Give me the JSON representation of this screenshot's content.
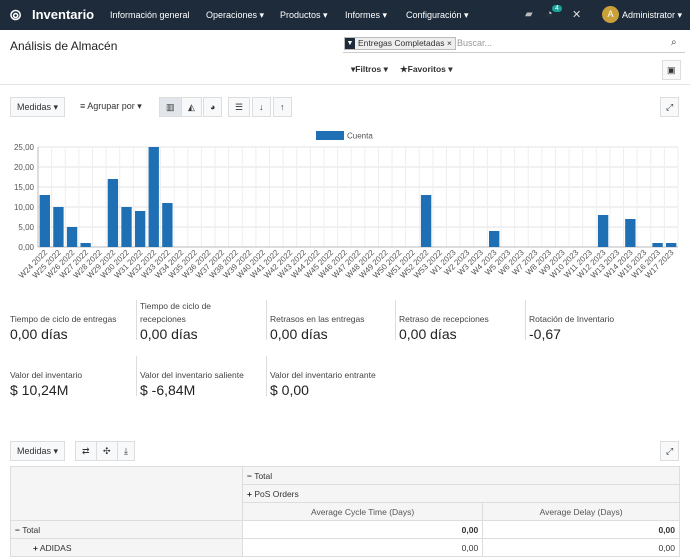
{
  "navbar": {
    "app": "Inventario",
    "menus": [
      "Información general",
      "Operaciones",
      "Productos",
      "Informes",
      "Configuración"
    ],
    "badge": "4",
    "user_initial": "A",
    "user": "Administrator"
  },
  "control_panel": {
    "title": "Análisis de Almacén",
    "facet": "Entregas Completadas",
    "search_placeholder": "Buscar...",
    "filters": "Filtros",
    "favorites": "Favoritos"
  },
  "graph_toolbar": {
    "measures": "Medidas",
    "group_by": "Agrupar por"
  },
  "chart_data": {
    "type": "bar",
    "categories": [
      "W24 2022",
      "W25 2022",
      "W26 2022",
      "W27 2022",
      "W28 2022",
      "W29 2022",
      "W30 2022",
      "W31 2022",
      "W32 2022",
      "W33 2022",
      "W34 2022",
      "W35 2022",
      "W36 2022",
      "W37 2022",
      "W38 2022",
      "W39 2022",
      "W40 2022",
      "W41 2022",
      "W42 2022",
      "W43 2022",
      "W44 2022",
      "W45 2022",
      "W46 2022",
      "W47 2022",
      "W48 2022",
      "W49 2022",
      "W50 2022",
      "W51 2022",
      "W52 2022",
      "W53 2022",
      "W1 2023",
      "W2 2023",
      "W3 2023",
      "W4 2023",
      "W5 2023",
      "W6 2023",
      "W7 2023",
      "W8 2023",
      "W9 2023",
      "W10 2023",
      "W11 2023",
      "W12 2023",
      "W13 2023",
      "W14 2023",
      "W15 2023",
      "W16 2023",
      "W17 2023"
    ],
    "series": [
      {
        "name": "Cuenta",
        "color": "#1f6fb4",
        "values": [
          13,
          10,
          5,
          1,
          0,
          17,
          10,
          9,
          25,
          11,
          0,
          0,
          0,
          0,
          0,
          0,
          0,
          0,
          0,
          0,
          0,
          0,
          0,
          0,
          0,
          0,
          0,
          0,
          13,
          0,
          0,
          0,
          0,
          4,
          0,
          0,
          0,
          0,
          0,
          0,
          0,
          8,
          0,
          7,
          0,
          1,
          1
        ]
      }
    ],
    "ylim": [
      0,
      25
    ],
    "yticks": [
      {
        "value": 0,
        "label": "0,00"
      },
      {
        "value": 5,
        "label": "5,00"
      },
      {
        "value": 10,
        "label": "10,00"
      },
      {
        "value": 15,
        "label": "15,00"
      },
      {
        "value": 20,
        "label": "20,00"
      },
      {
        "value": 25,
        "label": "25,00"
      }
    ],
    "grid": true,
    "legend": "top"
  },
  "kpis": [
    {
      "label": "Tiempo de ciclo de entregas",
      "value": "0,00 días"
    },
    {
      "label": "Tiempo de ciclo de recepciones",
      "value": "0,00 días"
    },
    {
      "label": "Retrasos en las entregas",
      "value": "0,00 días"
    },
    {
      "label": "Retraso de recepciones",
      "value": "0,00 días"
    },
    {
      "label": "Rotación de Inventario",
      "value": "-0,67"
    },
    {
      "label": "Valor del inventario",
      "value": "$ 10,24M"
    },
    {
      "label": "Valor del inventario saliente",
      "value": "$ -6,84M"
    },
    {
      "label": "Valor del inventario entrante",
      "value": "$ 0,00"
    }
  ],
  "pivot": {
    "measures": "Medidas",
    "col_headers": [
      "Total",
      "PoS Orders"
    ],
    "measure_headers": [
      "Average Cycle Time (Days)",
      "Average Delay (Days)"
    ],
    "rows": [
      {
        "label": "Total",
        "values": [
          "0,00",
          "0,00"
        ]
      },
      {
        "label": "ADIDAS",
        "values": [
          "0,00",
          "0,00"
        ]
      }
    ]
  }
}
